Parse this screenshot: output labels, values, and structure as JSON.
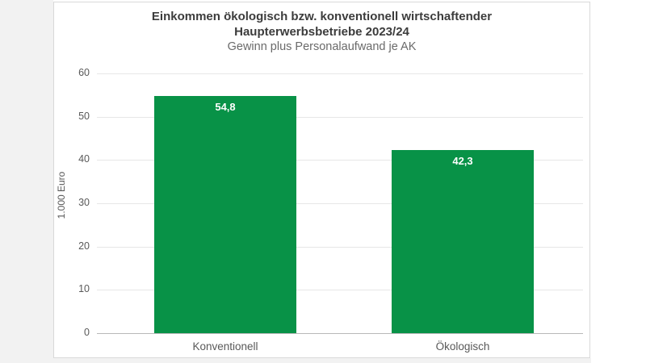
{
  "page": {
    "background": "#ffffff",
    "strip_color": "#f2f2f2",
    "panel_border_color": "#d9d9d9"
  },
  "chart_data": {
    "type": "bar",
    "title_line1": "Einkommen ökologisch bzw. konventionell wirtschaftender",
    "title_line2": "Haupterwerbsbetriebe 2023/24",
    "subtitle": "Gewinn plus Personalaufwand je AK",
    "ylabel": "1.000 Euro",
    "xlabel": "",
    "categories": [
      "Konventionell",
      "Ökologisch"
    ],
    "values": [
      54.8,
      42.3
    ],
    "value_labels": [
      "54,8",
      "42,3"
    ],
    "yticks": [
      0,
      10,
      20,
      30,
      40,
      50,
      60
    ],
    "ylim": [
      0,
      60
    ],
    "grid": true,
    "legend": "none",
    "bar_color": "#089247",
    "grid_color": "#e7e7e7",
    "axis_color": "#b8b8b8",
    "tick_label_color": "#595959",
    "value_label_color": "#ffffff"
  }
}
